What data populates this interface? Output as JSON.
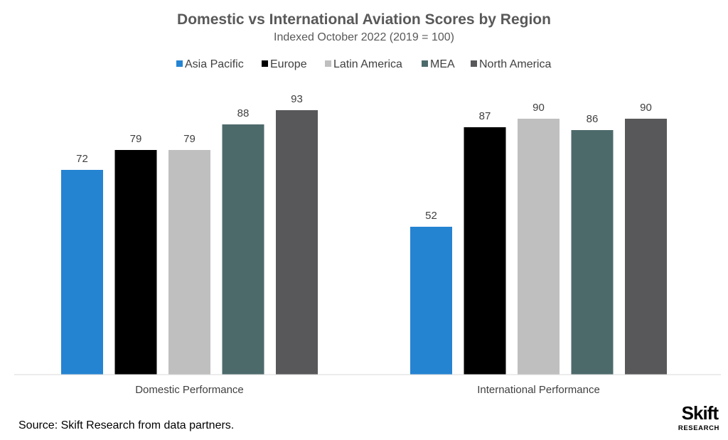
{
  "chart_data": {
    "type": "bar",
    "title": "Domestic vs International Aviation Scores by Region",
    "subtitle": "Indexed October 2022 (2019 = 100)",
    "categories": [
      "Domestic Performance",
      "International Performance"
    ],
    "series": [
      {
        "name": "Asia Pacific",
        "color": "#2584D2",
        "values": [
          72,
          52
        ]
      },
      {
        "name": "Europe",
        "color": "#000000",
        "values": [
          79,
          87
        ]
      },
      {
        "name": "Latin America",
        "color": "#BFBFBF",
        "values": [
          79,
          90
        ]
      },
      {
        "name": "MEA",
        "color": "#4D6A6B",
        "values": [
          88,
          86
        ]
      },
      {
        "name": "North America",
        "color": "#58585A",
        "values": [
          93,
          90
        ]
      }
    ],
    "ylim": [
      0,
      100
    ],
    "grid": false,
    "legend_position": "top",
    "xlabel": "",
    "ylabel": ""
  },
  "source": "Source: Skift Research from data partners.",
  "logo": {
    "main": "Skift",
    "sub": "RESEARCH"
  }
}
